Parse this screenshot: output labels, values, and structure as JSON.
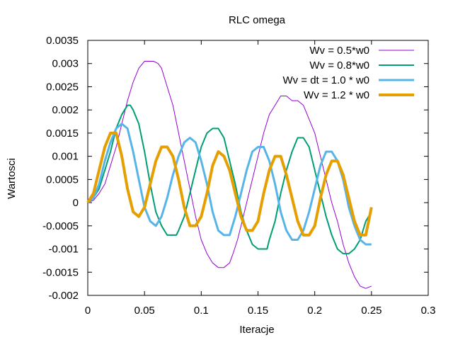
{
  "chart_data": {
    "type": "line",
    "title": "RLC omega",
    "xlabel": "Iteracje",
    "ylabel": "Wartosci",
    "xlim": [
      0,
      0.3
    ],
    "ylim": [
      -0.002,
      0.0035
    ],
    "xticks": [
      0,
      0.05,
      0.1,
      0.15,
      0.2,
      0.25,
      0.3
    ],
    "xtick_labels": [
      "0",
      "0.05",
      "0.1",
      "0.15",
      "0.2",
      "0.25",
      "0.3"
    ],
    "yticks": [
      -0.002,
      -0.0015,
      -0.001,
      -0.0005,
      0,
      0.0005,
      0.001,
      0.0015,
      0.002,
      0.0025,
      0.003,
      0.0035
    ],
    "ytick_labels": [
      "-0.002",
      "-0.0015",
      "-0.001",
      "-0.0005",
      "0",
      "0.0005",
      "0.001",
      "0.0015",
      "0.002",
      "0.0025",
      "0.003",
      "0.0035"
    ],
    "grid": false,
    "legend_position": "top-right",
    "series": [
      {
        "name": "Wv = 0.5*w0",
        "color": "#9400d3",
        "line_width": 1,
        "x": [
          0,
          0.005,
          0.01,
          0.015,
          0.02,
          0.025,
          0.03,
          0.035,
          0.04,
          0.045,
          0.05,
          0.055,
          0.058,
          0.062,
          0.065,
          0.07,
          0.075,
          0.08,
          0.085,
          0.09,
          0.095,
          0.1,
          0.105,
          0.11,
          0.115,
          0.12,
          0.125,
          0.128,
          0.132,
          0.135,
          0.14,
          0.145,
          0.15,
          0.155,
          0.16,
          0.165,
          0.17,
          0.175,
          0.18,
          0.185,
          0.19,
          0.195,
          0.2,
          0.205,
          0.21,
          0.215,
          0.22,
          0.225,
          0.23,
          0.235,
          0.24,
          0.245,
          0.25
        ],
        "y": [
          0,
          5e-05,
          0.0002,
          0.0004,
          0.0008,
          0.0012,
          0.0017,
          0.0022,
          0.0026,
          0.0029,
          0.00305,
          0.00305,
          0.00305,
          0.003,
          0.0029,
          0.0025,
          0.0021,
          0.0015,
          0.0009,
          0.0003,
          -0.0003,
          -0.0008,
          -0.0011,
          -0.0013,
          -0.0014,
          -0.0014,
          -0.0013,
          -0.0011,
          -0.0008,
          -0.0005,
          0.0,
          0.0005,
          0.001,
          0.0015,
          0.0019,
          0.0021,
          0.0023,
          0.0023,
          0.0022,
          0.0022,
          0.0021,
          0.0018,
          0.0015,
          0.001,
          0.0005,
          0.0,
          -0.0004,
          -0.0009,
          -0.0013,
          -0.0016,
          -0.0018,
          -0.00185,
          -0.0018
        ]
      },
      {
        "name": "Wv = 0.8*w0",
        "color": "#009e73",
        "line_width": 2,
        "x": [
          0,
          0.005,
          0.01,
          0.015,
          0.02,
          0.025,
          0.03,
          0.035,
          0.0375,
          0.04,
          0.045,
          0.05,
          0.055,
          0.06,
          0.065,
          0.07,
          0.075,
          0.078,
          0.08,
          0.085,
          0.09,
          0.095,
          0.1,
          0.105,
          0.11,
          0.115,
          0.12,
          0.125,
          0.13,
          0.135,
          0.14,
          0.145,
          0.15,
          0.155,
          0.158,
          0.16,
          0.165,
          0.17,
          0.175,
          0.18,
          0.185,
          0.19,
          0.195,
          0.2,
          0.205,
          0.21,
          0.215,
          0.22,
          0.225,
          0.23,
          0.235,
          0.24,
          0.245,
          0.25
        ],
        "y": [
          0,
          0.0001,
          0.0003,
          0.0007,
          0.0011,
          0.0016,
          0.0019,
          0.0021,
          0.0021,
          0.002,
          0.0017,
          0.0011,
          0.0004,
          -0.0002,
          -0.0005,
          -0.0007,
          -0.0007,
          -0.0007,
          -0.0006,
          -0.0003,
          0.0002,
          0.0007,
          0.0012,
          0.0015,
          0.0016,
          0.0016,
          0.0014,
          0.0009,
          0.0004,
          -0.0002,
          -0.0006,
          -0.0009,
          -0.001,
          -0.001,
          -0.001,
          -0.0008,
          -0.0004,
          0.0002,
          0.0007,
          0.0011,
          0.0014,
          0.0014,
          0.0012,
          0.0007,
          0.0002,
          -0.0003,
          -0.0007,
          -0.001,
          -0.0011,
          -0.0011,
          -0.001,
          -0.0008,
          -0.0004,
          -0.0002
        ]
      },
      {
        "name": "Wv = dt = 1.0 * w0",
        "color": "#56b4e9",
        "line_width": 3,
        "x": [
          0,
          0.005,
          0.01,
          0.015,
          0.02,
          0.025,
          0.03,
          0.035,
          0.04,
          0.045,
          0.05,
          0.055,
          0.06,
          0.065,
          0.07,
          0.075,
          0.08,
          0.085,
          0.09,
          0.095,
          0.1,
          0.105,
          0.11,
          0.115,
          0.12,
          0.125,
          0.13,
          0.135,
          0.14,
          0.145,
          0.15,
          0.155,
          0.16,
          0.165,
          0.17,
          0.175,
          0.18,
          0.185,
          0.19,
          0.195,
          0.2,
          0.205,
          0.21,
          0.215,
          0.22,
          0.225,
          0.23,
          0.235,
          0.24,
          0.245,
          0.25
        ],
        "y": [
          0,
          0.0001,
          0.0004,
          0.0009,
          0.0013,
          0.0016,
          0.0017,
          0.0016,
          0.0011,
          0.0005,
          -0.0001,
          -0.0004,
          -0.0005,
          -0.0003,
          0.0001,
          0.0006,
          0.001,
          0.0013,
          0.0014,
          0.0013,
          0.0009,
          0.0004,
          -0.0002,
          -0.0006,
          -0.0007,
          -0.0007,
          -0.0003,
          0.0002,
          0.0007,
          0.0011,
          0.0012,
          0.0012,
          0.0009,
          0.0004,
          -0.0002,
          -0.0006,
          -0.0008,
          -0.0008,
          -0.0006,
          -0.0002,
          0.0003,
          0.0008,
          0.0011,
          0.0011,
          0.0009,
          0.0005,
          -0.0001,
          -0.0005,
          -0.0008,
          -0.0009,
          -0.0009
        ]
      },
      {
        "name": "Wv = 1.2 * w0",
        "color": "#e69f00",
        "line_width": 4,
        "x": [
          0,
          0.005,
          0.01,
          0.015,
          0.02,
          0.025,
          0.03,
          0.035,
          0.04,
          0.045,
          0.05,
          0.055,
          0.06,
          0.065,
          0.07,
          0.075,
          0.08,
          0.085,
          0.09,
          0.095,
          0.1,
          0.105,
          0.11,
          0.115,
          0.12,
          0.125,
          0.13,
          0.135,
          0.14,
          0.145,
          0.15,
          0.155,
          0.16,
          0.165,
          0.17,
          0.175,
          0.18,
          0.185,
          0.19,
          0.195,
          0.2,
          0.205,
          0.21,
          0.215,
          0.22,
          0.225,
          0.23,
          0.235,
          0.24,
          0.245,
          0.25
        ],
        "y": [
          0,
          0.0002,
          0.0007,
          0.0012,
          0.0015,
          0.0015,
          0.001,
          0.0003,
          -0.0002,
          -0.0003,
          -0.0001,
          0.0004,
          0.0009,
          0.0012,
          0.0012,
          0.001,
          0.0005,
          -0.0001,
          -0.0005,
          -0.0005,
          -0.0003,
          0.0002,
          0.0008,
          0.0011,
          0.001,
          0.0007,
          0.0002,
          -0.0003,
          -0.0006,
          -0.0006,
          -0.0004,
          0.0002,
          0.0007,
          0.001,
          0.001,
          0.0006,
          0.0001,
          -0.0004,
          -0.0007,
          -0.0007,
          -0.0005,
          0.0001,
          0.0006,
          0.0009,
          0.0009,
          0.0006,
          0.0001,
          -0.0004,
          -0.0007,
          -0.0007,
          -0.0001
        ]
      }
    ]
  }
}
